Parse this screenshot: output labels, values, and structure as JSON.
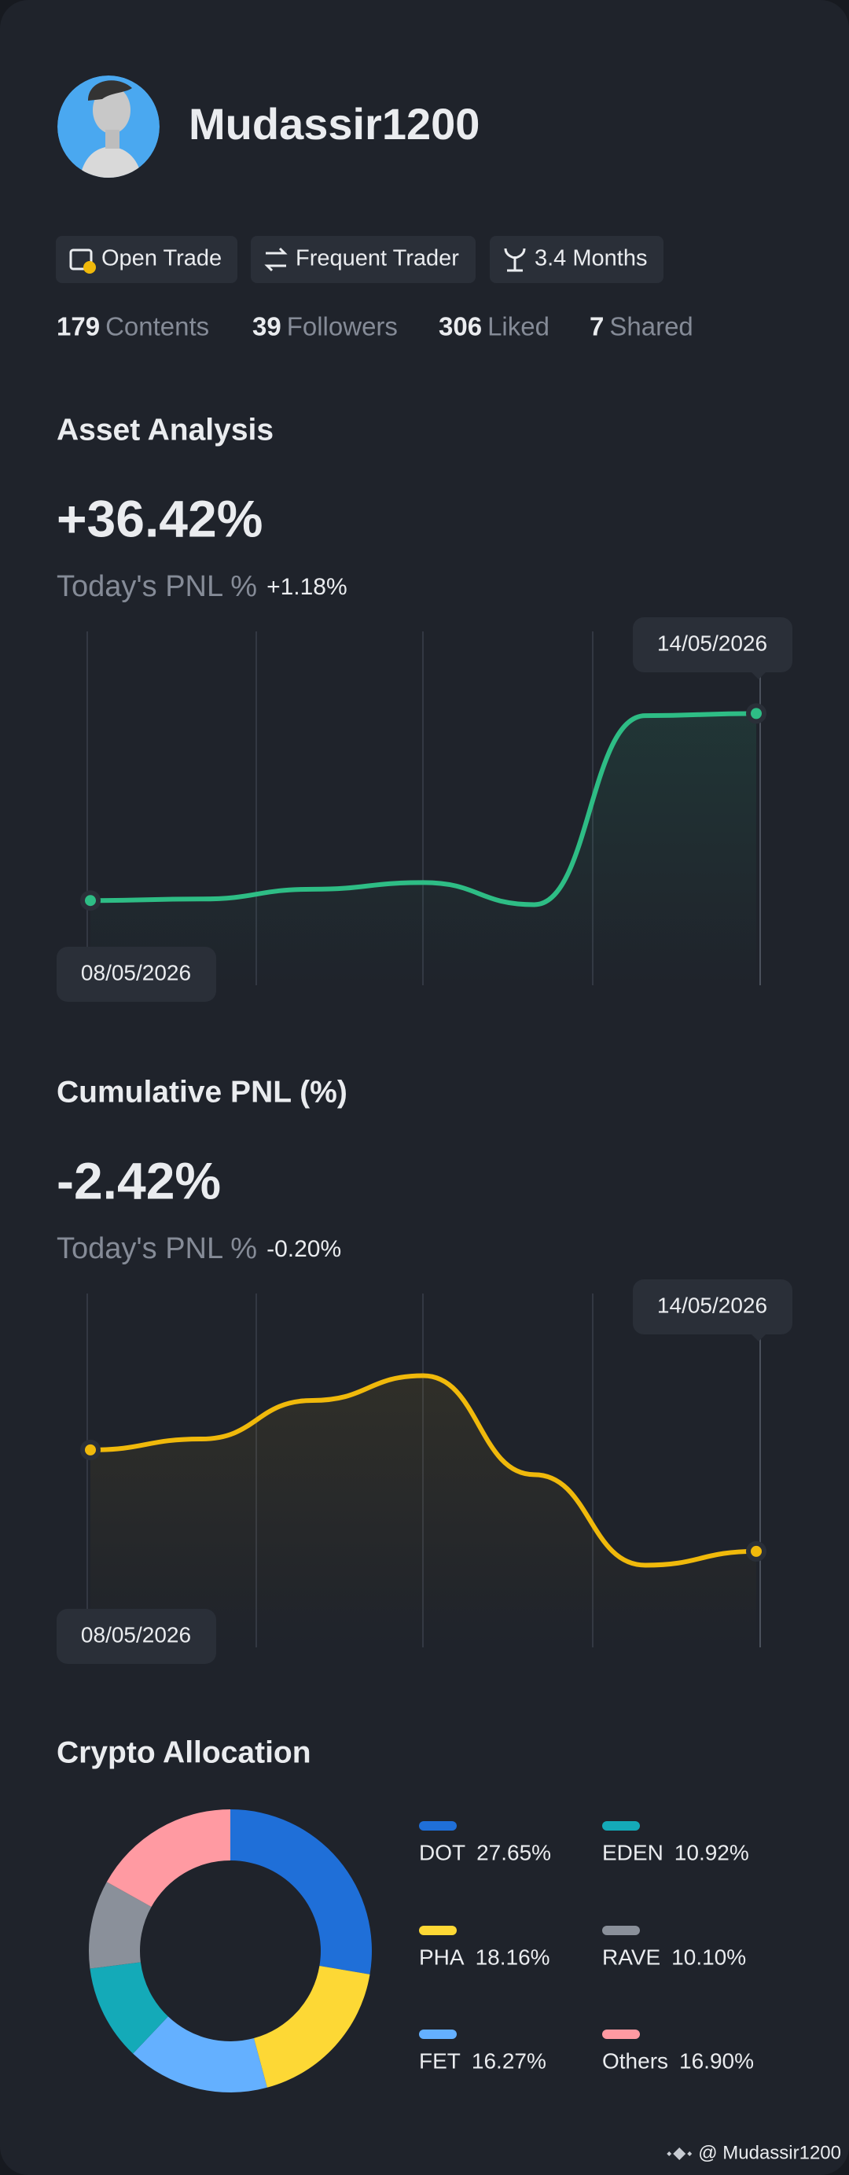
{
  "profile": {
    "name": "Mudassir1200",
    "badges": [
      "Open Trade",
      "Frequent Trader",
      "3.4 Months"
    ],
    "stats": [
      {
        "value": 179,
        "label": "Contents"
      },
      {
        "value": 39,
        "label": "Followers"
      },
      {
        "value": 306,
        "label": "Liked"
      },
      {
        "value": 7,
        "label": "Shared"
      }
    ]
  },
  "chart_data": [
    {
      "type": "line",
      "title": "Asset Analysis",
      "headline": "+36.42%",
      "subtitle": "Today's PNL %",
      "today_change": "+1.18%",
      "categories": [
        "08/05/2026",
        null,
        null,
        null,
        null,
        null,
        "14/05/2026"
      ],
      "values": [
        0,
        0.3,
        2.2,
        3.5,
        -0.8,
        36.0,
        36.42
      ],
      "color": "#2ebd85",
      "ylim": [
        -16.5,
        52.4
      ]
    },
    {
      "type": "line",
      "title": "Cumulative PNL (%)",
      "headline": "-2.42%",
      "subtitle": "Today's PNL %",
      "today_change": "-0.20%",
      "categories": [
        "08/05/2026",
        null,
        null,
        null,
        null,
        null,
        "14/05/2026"
      ],
      "values": [
        0,
        0.26,
        1.18,
        1.77,
        -0.59,
        -2.75,
        -2.42
      ],
      "color": "#f0b90b",
      "ylim": [
        -4.71,
        3.73
      ]
    },
    {
      "type": "pie",
      "title": "Crypto Allocation",
      "donut": true,
      "categories": [
        "DOT",
        "PHA",
        "FET",
        "EDEN",
        "RAVE",
        "Others"
      ],
      "values": [
        27.65,
        18.16,
        16.27,
        10.92,
        10.1,
        16.9
      ],
      "value_labels": [
        "27.65%",
        "18.16%",
        "16.27%",
        "10.92%",
        "10.10%",
        "16.90%"
      ],
      "colors": [
        "#1f6fd8",
        "#fdd835",
        "#64b0ff",
        "#14aab8",
        "#8a909a",
        "#ff9aa2"
      ]
    }
  ],
  "footer": "@ Mudassir1200"
}
